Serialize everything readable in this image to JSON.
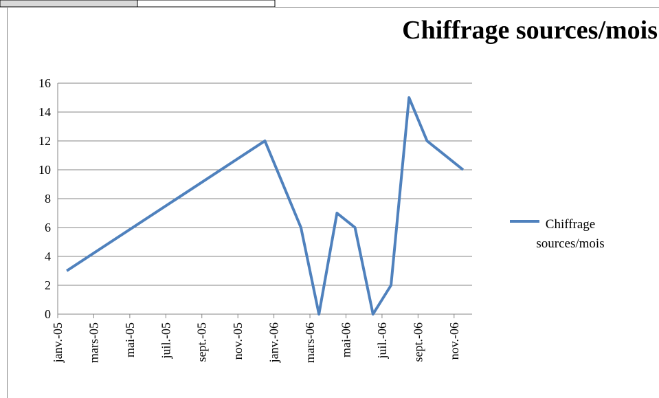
{
  "chart_data": {
    "type": "line",
    "title": "Chiffrage sources/mois",
    "x": [
      "2005-01",
      "2005-12",
      "2006-02",
      "2006-03",
      "2006-04",
      "2006-05",
      "2006-06",
      "2006-07",
      "2006-08",
      "2006-09",
      "2006-11"
    ],
    "series": [
      {
        "name": "Chiffrage sources/mois",
        "color": "#4f81bd",
        "values": [
          3,
          12,
          6,
          0,
          7,
          6,
          0,
          2,
          15,
          12,
          10
        ]
      }
    ],
    "xlim": [
      "2005-01",
      "2006-12"
    ],
    "xticks": [
      {
        "value": "2005-01",
        "label": "janv.-05"
      },
      {
        "value": "2005-03",
        "label": "mars-05"
      },
      {
        "value": "2005-05",
        "label": "mai-05"
      },
      {
        "value": "2005-07",
        "label": "juil.-05"
      },
      {
        "value": "2005-09",
        "label": "sept.-05"
      },
      {
        "value": "2005-11",
        "label": "nov.-05"
      },
      {
        "value": "2006-01",
        "label": "janv.-06"
      },
      {
        "value": "2006-03",
        "label": "mars-06"
      },
      {
        "value": "2006-05",
        "label": "mai-06"
      },
      {
        "value": "2006-07",
        "label": "juil.-06"
      },
      {
        "value": "2006-09",
        "label": "sept.-06"
      },
      {
        "value": "2006-11",
        "label": "nov.-06"
      }
    ],
    "ylim": [
      0,
      16
    ],
    "yticks": [
      0,
      2,
      4,
      6,
      8,
      10,
      12,
      14,
      16
    ],
    "grid": true,
    "legend": "right"
  }
}
